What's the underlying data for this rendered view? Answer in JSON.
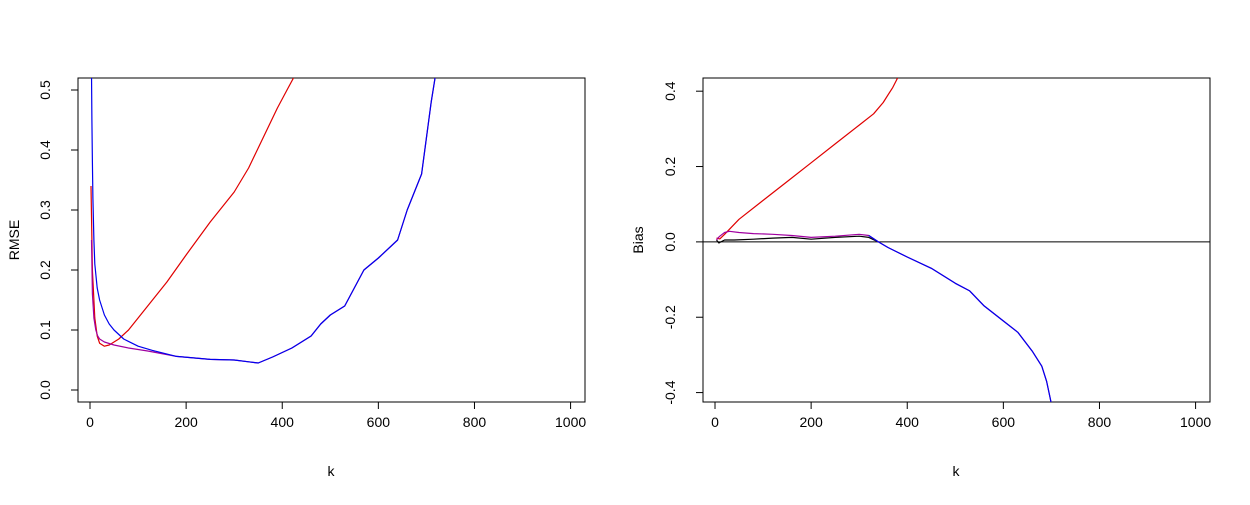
{
  "chart_data": [
    {
      "type": "line",
      "xlabel": "k",
      "ylabel": "RMSE",
      "xlim": [
        -25,
        1030
      ],
      "ylim": [
        -0.02,
        0.52
      ],
      "xticks": [
        0,
        200,
        400,
        600,
        800,
        1000
      ],
      "yticks": [
        0.0,
        0.1,
        0.2,
        0.3,
        0.4,
        0.5
      ],
      "xtick_labels": [
        "0",
        "200",
        "400",
        "600",
        "800",
        "1000"
      ],
      "ytick_labels": [
        "0.0",
        "0.1",
        "0.2",
        "0.3",
        "0.4",
        "0.5"
      ],
      "reference_line": null,
      "series": [
        {
          "color": "#e00000",
          "x": [
            2,
            5,
            10,
            15,
            20,
            30,
            40,
            60,
            80,
            100,
            130,
            160,
            200,
            250,
            300,
            330,
            360,
            390,
            410,
            430
          ],
          "y": [
            0.34,
            0.2,
            0.12,
            0.09,
            0.078,
            0.073,
            0.075,
            0.085,
            0.1,
            0.12,
            0.15,
            0.18,
            0.225,
            0.28,
            0.33,
            0.37,
            0.42,
            0.47,
            0.5,
            0.53
          ]
        },
        {
          "color": "#a000a0",
          "x": [
            3,
            5,
            8,
            12,
            16,
            20,
            30,
            50,
            80,
            120,
            180,
            250,
            300,
            330,
            350,
            380,
            420,
            460,
            480,
            500,
            530,
            550,
            570,
            600,
            640,
            660,
            690,
            700,
            710,
            720
          ],
          "y": [
            0.25,
            0.16,
            0.12,
            0.1,
            0.09,
            0.085,
            0.08,
            0.075,
            0.07,
            0.065,
            0.056,
            0.051,
            0.05,
            0.047,
            0.045,
            0.055,
            0.07,
            0.09,
            0.11,
            0.125,
            0.14,
            0.17,
            0.2,
            0.22,
            0.25,
            0.3,
            0.36,
            0.42,
            0.48,
            0.53
          ]
        },
        {
          "color": "#0000ee",
          "x": [
            3,
            4,
            5,
            6,
            8,
            10,
            15,
            20,
            30,
            40,
            50,
            70,
            100,
            130,
            180,
            250,
            300,
            330,
            350,
            380,
            420,
            460,
            480,
            500,
            530,
            550,
            570,
            600,
            640,
            660,
            690,
            700,
            710,
            720
          ],
          "y": [
            0.53,
            0.45,
            0.38,
            0.32,
            0.25,
            0.21,
            0.17,
            0.15,
            0.125,
            0.11,
            0.1,
            0.085,
            0.073,
            0.066,
            0.056,
            0.051,
            0.05,
            0.047,
            0.045,
            0.055,
            0.07,
            0.09,
            0.11,
            0.125,
            0.14,
            0.17,
            0.2,
            0.22,
            0.25,
            0.3,
            0.36,
            0.42,
            0.48,
            0.53
          ]
        }
      ]
    },
    {
      "type": "line",
      "xlabel": "k",
      "ylabel": "Bias",
      "xlim": [
        -25,
        1030
      ],
      "ylim": [
        -0.425,
        0.435
      ],
      "xticks": [
        0,
        200,
        400,
        600,
        800,
        1000
      ],
      "yticks": [
        -0.4,
        -0.2,
        0.0,
        0.2,
        0.4
      ],
      "xtick_labels": [
        "0",
        "200",
        "400",
        "600",
        "800",
        "1000"
      ],
      "ytick_labels": [
        "-0.4",
        "-0.2",
        "0.0",
        "0.2",
        "0.4"
      ],
      "reference_line": {
        "y": 0.0,
        "color": "#000000"
      },
      "series": [
        {
          "color": "#e00000",
          "x": [
            3,
            10,
            20,
            50,
            100,
            150,
            200,
            250,
            300,
            330,
            350,
            370,
            380
          ],
          "y": [
            0.01,
            0.008,
            0.02,
            0.06,
            0.11,
            0.16,
            0.21,
            0.26,
            0.31,
            0.34,
            0.37,
            0.41,
            0.435
          ]
        },
        {
          "color": "#000000",
          "x": [
            3,
            8,
            12,
            20,
            40,
            80,
            120,
            160,
            200,
            250,
            300,
            320,
            340
          ],
          "y": [
            0.005,
            -0.003,
            0.0,
            0.005,
            0.005,
            0.007,
            0.01,
            0.012,
            0.007,
            0.012,
            0.015,
            0.012,
            0.0
          ]
        },
        {
          "color": "#a000a0",
          "x": [
            3,
            6,
            10,
            15,
            20,
            30,
            50,
            80,
            120,
            160,
            200,
            250,
            300,
            320,
            340,
            360,
            400,
            450,
            500,
            530,
            560,
            600,
            630,
            660,
            680,
            690,
            700
          ],
          "y": [
            0.005,
            0.01,
            0.015,
            0.02,
            0.025,
            0.028,
            0.025,
            0.022,
            0.02,
            0.017,
            0.012,
            0.015,
            0.02,
            0.017,
            0.0,
            -0.015,
            -0.04,
            -0.07,
            -0.11,
            -0.13,
            -0.17,
            -0.21,
            -0.24,
            -0.29,
            -0.33,
            -0.37,
            -0.43
          ]
        },
        {
          "color": "#0000ee",
          "x": [
            320,
            340,
            360,
            400,
            450,
            500,
            530,
            560,
            600,
            630,
            660,
            680,
            690,
            700
          ],
          "y": [
            0.017,
            0.0,
            -0.015,
            -0.04,
            -0.07,
            -0.11,
            -0.13,
            -0.17,
            -0.21,
            -0.24,
            -0.29,
            -0.33,
            -0.37,
            -0.43
          ]
        }
      ]
    }
  ]
}
